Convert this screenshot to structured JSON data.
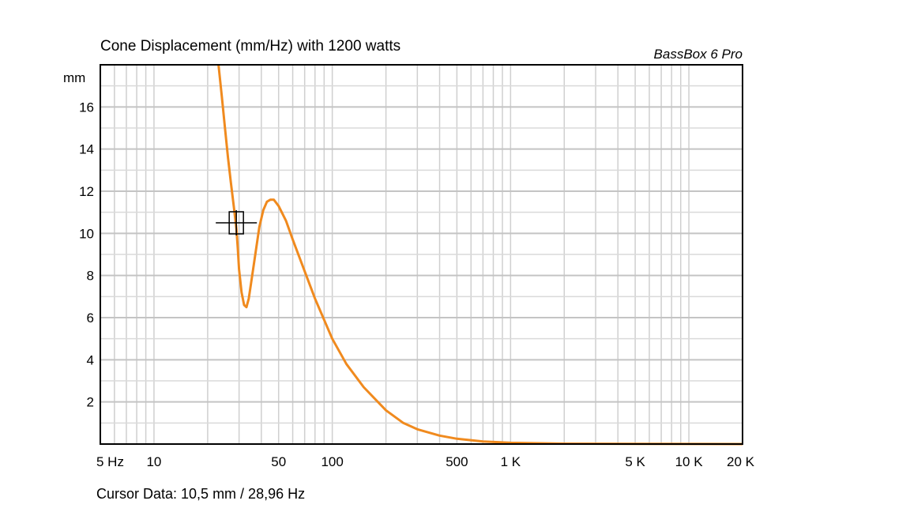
{
  "chart_data": {
    "type": "line",
    "title": "Cone Displacement (mm/Hz) with 1200 watts",
    "brand": "BassBox 6 Pro",
    "ylabel": "mm",
    "xscale": "log",
    "xlim": [
      5,
      20000
    ],
    "ylim": [
      0,
      18
    ],
    "x_ticks": [
      {
        "value": 5,
        "label": "5 Hz"
      },
      {
        "value": 10,
        "label": "10"
      },
      {
        "value": 50,
        "label": "50"
      },
      {
        "value": 100,
        "label": "100"
      },
      {
        "value": 500,
        "label": "500"
      },
      {
        "value": 1000,
        "label": "1 K"
      },
      {
        "value": 5000,
        "label": "5 K"
      },
      {
        "value": 10000,
        "label": "10 K"
      },
      {
        "value": 20000,
        "label": "20 K"
      }
    ],
    "y_ticks": [
      2,
      4,
      6,
      8,
      10,
      12,
      14,
      16
    ],
    "grid": true,
    "series": [
      {
        "color": "#f08a1e",
        "points": [
          [
            23,
            18.0
          ],
          [
            24,
            16.5
          ],
          [
            25,
            15.0
          ],
          [
            26,
            13.6
          ],
          [
            27,
            12.4
          ],
          [
            28,
            11.3
          ],
          [
            29,
            10.2
          ],
          [
            29.5,
            9.3
          ],
          [
            30,
            8.3
          ],
          [
            31,
            7.2
          ],
          [
            32,
            6.6
          ],
          [
            33,
            6.5
          ],
          [
            34,
            6.9
          ],
          [
            35,
            7.6
          ],
          [
            37,
            9.0
          ],
          [
            39,
            10.3
          ],
          [
            41,
            11.1
          ],
          [
            43,
            11.5
          ],
          [
            45,
            11.6
          ],
          [
            47,
            11.6
          ],
          [
            50,
            11.3
          ],
          [
            55,
            10.6
          ],
          [
            60,
            9.7
          ],
          [
            70,
            8.2
          ],
          [
            80,
            6.9
          ],
          [
            100,
            5.0
          ],
          [
            120,
            3.8
          ],
          [
            150,
            2.7
          ],
          [
            200,
            1.6
          ],
          [
            250,
            1.0
          ],
          [
            300,
            0.7
          ],
          [
            400,
            0.4
          ],
          [
            500,
            0.25
          ],
          [
            700,
            0.12
          ],
          [
            1000,
            0.06
          ],
          [
            2000,
            0.02
          ],
          [
            5000,
            0.01
          ],
          [
            20000,
            0.0
          ]
        ]
      }
    ],
    "cursor": {
      "x": 28.96,
      "y": 10.5
    },
    "cursor_label": "Cursor Data:  10,5 mm / 28,96 Hz"
  }
}
